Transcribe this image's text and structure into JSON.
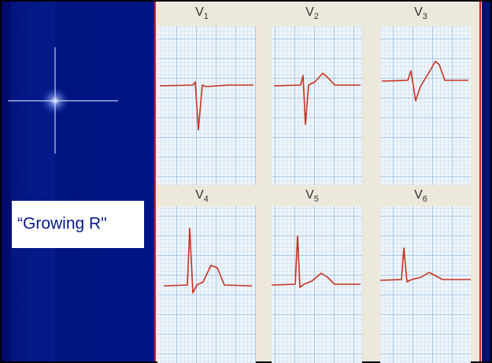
{
  "slide": {
    "label": "“Growing R\"",
    "leads": [
      {
        "letter": "V",
        "sub": "1"
      },
      {
        "letter": "V",
        "sub": "2"
      },
      {
        "letter": "V",
        "sub": "3"
      },
      {
        "letter": "V",
        "sub": "4"
      },
      {
        "letter": "V",
        "sub": "5"
      },
      {
        "letter": "V",
        "sub": "6"
      }
    ]
  }
}
